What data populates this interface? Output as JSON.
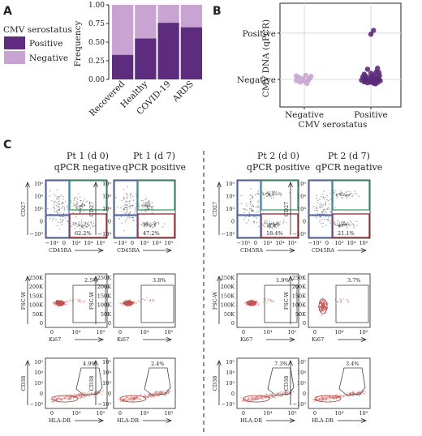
{
  "panels": {
    "a": "A",
    "b": "B",
    "c": "C"
  },
  "colors": {
    "positive": "#5b2a7a",
    "negative": "#c8a6d2",
    "bar_positive": "#5e2c7e",
    "bar_negative": "#c9a4d3",
    "gate_blue": "#5a6fae",
    "gate_green": "#3a9a6a",
    "gate_red": "#9a2a2a"
  },
  "legend": {
    "title": "CMV serostatus",
    "items": [
      "Positive",
      "Negative"
    ]
  },
  "chart_data": [
    {
      "type": "bar",
      "stacked": true,
      "categories": [
        "Recovered",
        "Healthy",
        "COVID-19",
        "ARDS"
      ],
      "series": [
        {
          "name": "Positive",
          "values": [
            0.33,
            0.55,
            0.76,
            0.7
          ]
        },
        {
          "name": "Negative",
          "values": [
            0.67,
            0.45,
            0.24,
            0.3
          ]
        }
      ],
      "ylabel": "Frequency",
      "ylim": [
        0,
        1
      ],
      "yticks": [
        "0.00",
        "0.25",
        "0.50",
        "0.75",
        "1.00"
      ]
    },
    {
      "type": "scatter",
      "categories": [
        "Negative",
        "Positive"
      ],
      "xlabel": "CMV serostatus",
      "ylabel": "CMV DNA (qPCR)",
      "yticks": [
        "Negative",
        "Positive"
      ],
      "grid": true,
      "series": [
        {
          "name": "Negative",
          "points": [
            [
              -0.12,
              0.25
            ],
            [
              0.02,
              0.3
            ],
            [
              0.1,
              0.22
            ],
            [
              -0.08,
              0.15
            ],
            [
              0.08,
              0.08
            ],
            [
              -0.02,
              0.05
            ],
            [
              0.06,
              -0.05
            ],
            [
              -0.12,
              -0.08
            ],
            [
              0.0,
              -0.12
            ],
            [
              -0.06,
              -0.2
            ],
            [
              0.04,
              -0.3
            ]
          ]
        },
        {
          "name": "Positive",
          "points": [
            [
              1.1,
              0.82
            ],
            [
              0.95,
              0.75
            ],
            [
              1.08,
              0.55
            ],
            [
              1.12,
              0.52
            ],
            [
              1.0,
              0.45
            ],
            [
              0.9,
              0.38
            ],
            [
              1.05,
              0.33
            ],
            [
              1.13,
              0.28
            ],
            [
              0.92,
              0.25
            ],
            [
              1.02,
              0.22
            ],
            [
              0.88,
              0.18
            ],
            [
              1.1,
              0.15
            ],
            [
              0.97,
              0.12
            ],
            [
              1.05,
              0.1
            ],
            [
              0.9,
              0.05
            ],
            [
              1.12,
              0.05
            ],
            [
              1.0,
              0.02
            ],
            [
              0.94,
              -0.02
            ],
            [
              1.08,
              -0.04
            ],
            [
              0.86,
              -0.05
            ],
            [
              1.02,
              -0.08
            ],
            [
              0.92,
              -0.1
            ],
            [
              1.14,
              -0.1
            ],
            [
              0.98,
              -0.13
            ],
            [
              1.06,
              -0.15
            ],
            [
              0.9,
              -0.18
            ],
            [
              1.0,
              -0.2
            ],
            [
              1.1,
              -0.22
            ],
            [
              0.95,
              -0.25
            ],
            [
              1.04,
              -0.28
            ],
            [
              1.07,
              -0.32
            ],
            [
              1.04,
              3.6
            ],
            [
              1.0,
              3.32
            ]
          ]
        }
      ]
    }
  ],
  "flow": {
    "columns": [
      {
        "title1": "Pt 1 (d 0)",
        "title2": "qPCR negative",
        "cd27_pct": "62.2%",
        "ki67_pct": "2.5%",
        "cd38_pct": "4.9%"
      },
      {
        "title1": "Pt 1 (d 7)",
        "title2": "qPCR positive",
        "cd27_pct": "47.2%",
        "ki67_pct": "3.8%",
        "cd38_pct": "2.4%"
      },
      {
        "title1": "Pt 2 (d 0)",
        "title2": "qPCR positive",
        "cd27_pct": "18.4%",
        "ki67_pct": "1.9%",
        "cd38_pct": "7.3%"
      },
      {
        "title1": "Pt 2 (d 7)",
        "title2": "qPCR negative",
        "cd27_pct": "21.1%",
        "ki67_pct": "3.7%",
        "cd38_pct": "3.4%"
      }
    ],
    "row1": {
      "ylabel": "CD27",
      "xlabel": "CD45RA",
      "ticks_y": [
        "10⁵",
        "10⁴",
        "10³",
        "0",
        "−10³"
      ],
      "ticks_x": [
        "−10³",
        "0",
        "10³",
        "10⁴",
        "10⁵"
      ]
    },
    "row2": {
      "ylabel": "FSC-W",
      "xlabel": "Ki67",
      "ticks_y": [
        "250K",
        "200K",
        "150K",
        "100K",
        "50K",
        "0"
      ],
      "ticks_x": [
        "0",
        "10⁴",
        "10⁵"
      ]
    },
    "row3": {
      "ylabel": "CD38",
      "xlabel": "HLA-DR",
      "ticks_y": [
        "10⁵",
        "10⁴",
        "10³",
        "0",
        "−10³"
      ],
      "ticks_x": [
        "0",
        "10⁴",
        "10⁵"
      ]
    }
  }
}
